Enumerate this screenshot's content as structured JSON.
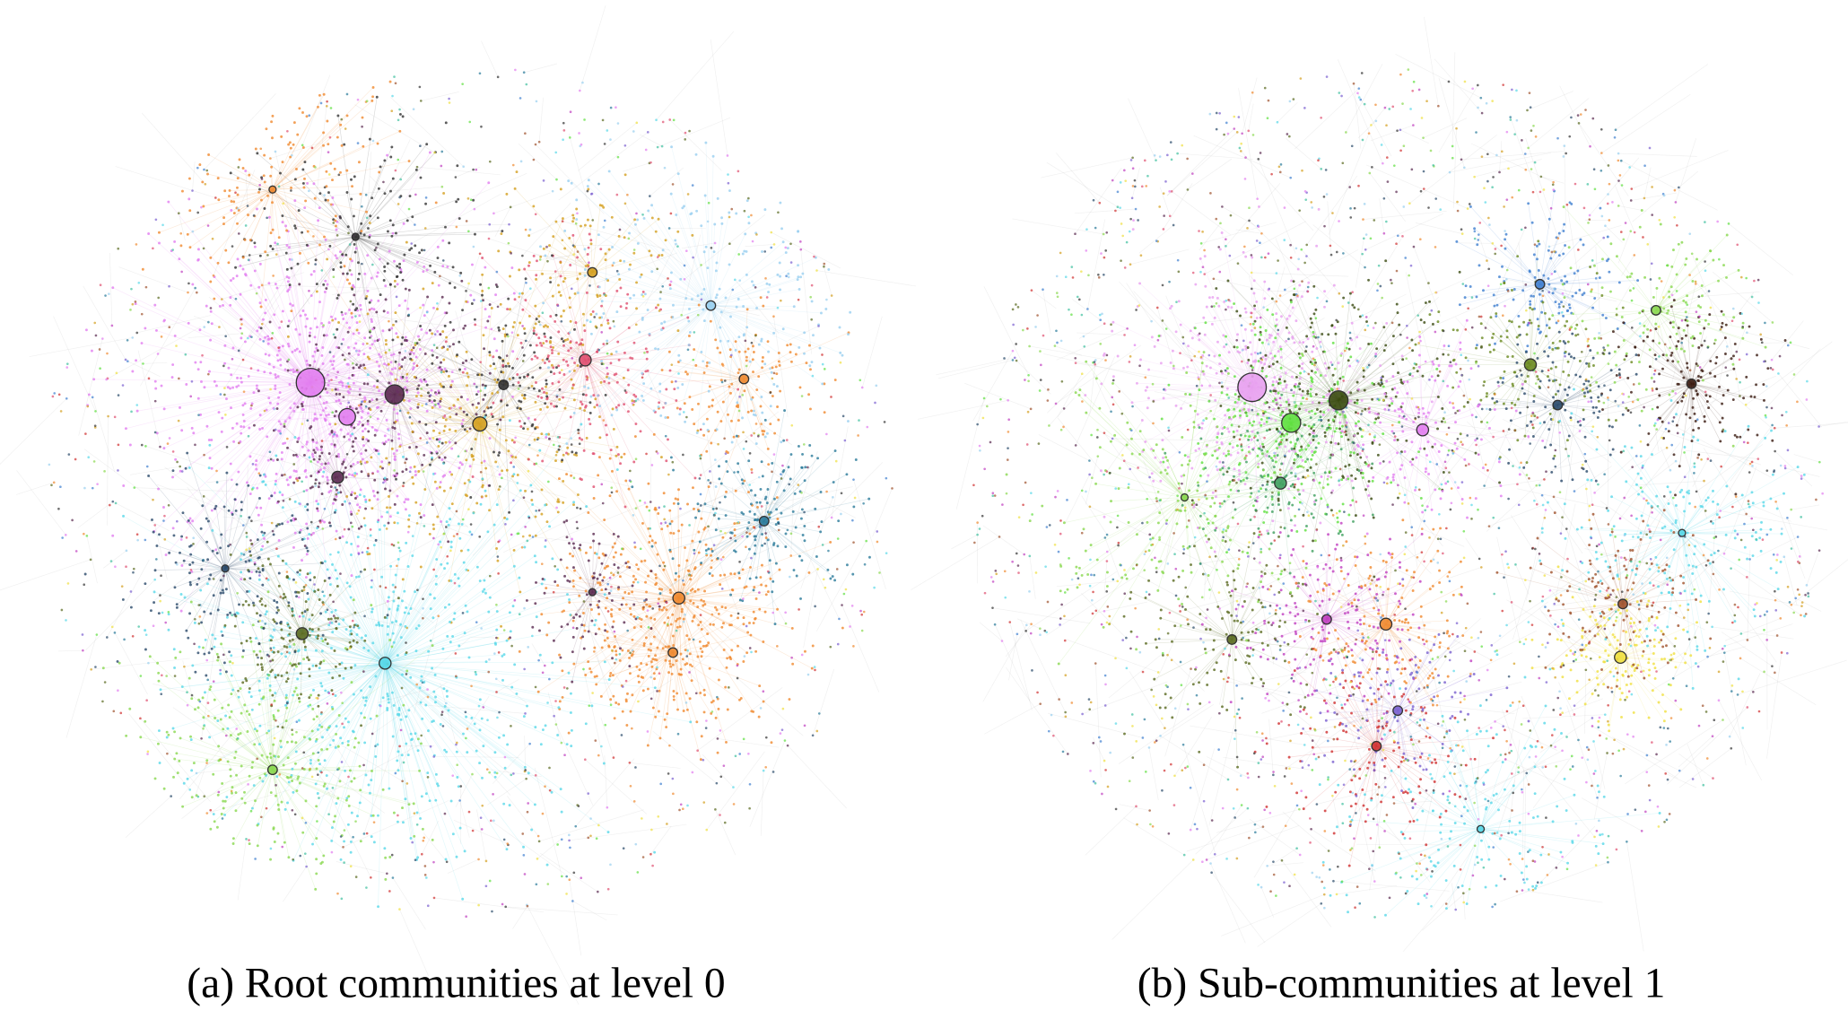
{
  "figure": {
    "panels": [
      {
        "caption": "(a) Root communities at level 0"
      },
      {
        "caption": "(b) Sub-communities at level 1"
      }
    ]
  }
}
